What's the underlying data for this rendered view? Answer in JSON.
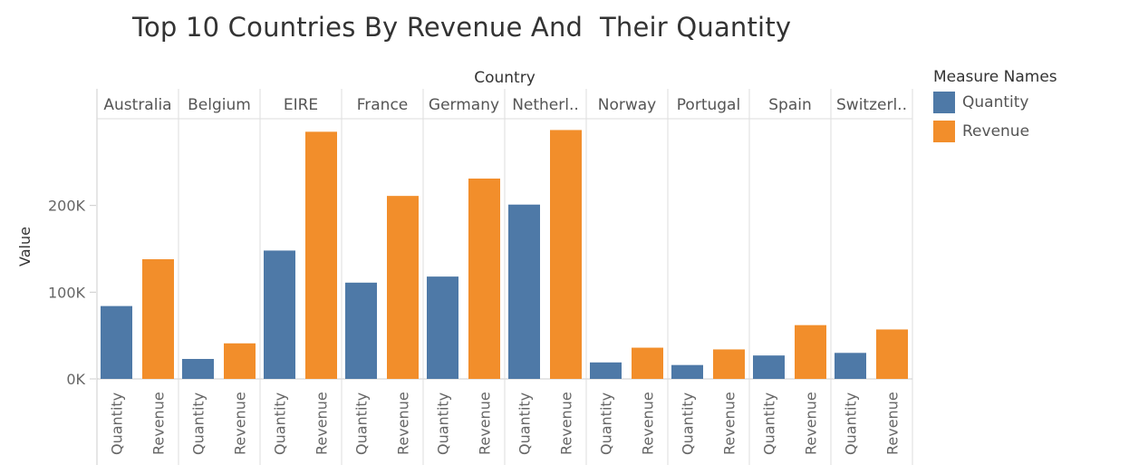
{
  "title": "Top 10 Countries By Revenue And  Their Quantity",
  "legend": {
    "title": "Measure Names",
    "items": [
      {
        "label": "Quantity",
        "color": "#4e79a7"
      },
      {
        "label": "Revenue",
        "color": "#f28e2b"
      }
    ]
  },
  "chart_data": {
    "type": "bar",
    "title": "Top 10 Countries By Revenue And  Their Quantity",
    "column_header": "Country",
    "ylabel": "Value",
    "ylim": [
      0,
      300000
    ],
    "yticks": [
      {
        "value": 0,
        "label": "0K"
      },
      {
        "value": 100000,
        "label": "100K"
      },
      {
        "value": 200000,
        "label": "200K"
      }
    ],
    "categories": [
      "Australia",
      "Belgium",
      "EIRE",
      "France",
      "Germany",
      "Netherl..",
      "Norway",
      "Portugal",
      "Spain",
      "Switzerl.."
    ],
    "measures": [
      "Quantity",
      "Revenue"
    ],
    "series": [
      {
        "name": "Quantity",
        "color": "#4e79a7",
        "values": [
          84000,
          23000,
          148000,
          111000,
          118000,
          201000,
          19000,
          16000,
          27000,
          30000
        ]
      },
      {
        "name": "Revenue",
        "color": "#f28e2b",
        "values": [
          138000,
          41000,
          285000,
          211000,
          231000,
          287000,
          36000,
          34000,
          62000,
          57000
        ]
      }
    ],
    "grid": false,
    "legend_position": "right"
  }
}
